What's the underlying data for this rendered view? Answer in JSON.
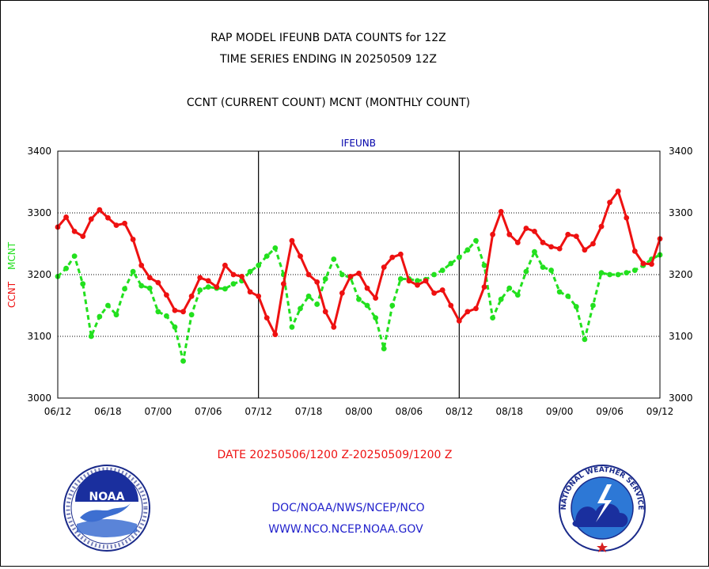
{
  "header": {
    "title_line1": "RAP MODEL IFEUNB DATA COUNTS for 12Z",
    "title_line2": "TIME SERIES ENDING IN 20250509 12Z",
    "subtitle": "CCNT (CURRENT COUNT) MCNT (MONTHLY COUNT)"
  },
  "footer": {
    "date_range": "DATE 20250506/1200 Z-20250509/1200 Z",
    "org_path": "DOC/NOAA/NWS/NCEP/NCO",
    "url": "WWW.NCO.NCEP.NOAA.GOV"
  },
  "logos": {
    "noaa_label": "NOAA",
    "nws_label": "NATIONAL WEATHER SERVICE"
  },
  "colors": {
    "ccnt": "#ee1111",
    "mcnt": "#22e01e",
    "frame": "#000000",
    "axis_title": "#0000aa",
    "footer_text": "#2222cc"
  },
  "chart_data": {
    "type": "line",
    "title": "IFEUNB",
    "ylabel_ccnt": "CCNT",
    "ylabel_mcnt": "MCNT",
    "ylim": [
      3000,
      3400
    ],
    "yticks": [
      "3000",
      "3100",
      "3200",
      "3300",
      "3400"
    ],
    "grid_y": [
      3100,
      3200,
      3300
    ],
    "xtick_labels": [
      "06/12",
      "06/18",
      "07/00",
      "07/06",
      "07/12",
      "07/18",
      "08/00",
      "08/06",
      "08/12",
      "08/18",
      "09/00",
      "09/06",
      "09/12"
    ],
    "day_dividers_at_tick": [
      4,
      8
    ],
    "series": [
      {
        "name": "CCNT",
        "style": "solid",
        "values": [
          3277,
          3293,
          3270,
          3262,
          3290,
          3305,
          3292,
          3280,
          3283,
          3257,
          3215,
          3195,
          3187,
          3167,
          3142,
          3140,
          3165,
          3195,
          3190,
          3180,
          3215,
          3200,
          3197,
          3172,
          3165,
          3130,
          3103,
          3185,
          3255,
          3230,
          3200,
          3188,
          3140,
          3115,
          3170,
          3197,
          3202,
          3178,
          3162,
          3212,
          3228,
          3233,
          3190,
          3183,
          3190,
          3170,
          3175,
          3150,
          3125,
          3140,
          3145,
          3180,
          3265,
          3302,
          3265,
          3252,
          3275,
          3270,
          3252,
          3245,
          3242,
          3265,
          3262,
          3240,
          3250,
          3278,
          3317,
          3335,
          3292,
          3238,
          3218,
          3217,
          3258
        ]
      },
      {
        "name": "MCNT",
        "style": "dashed",
        "values": [
          3197,
          3210,
          3230,
          3185,
          3100,
          3132,
          3150,
          3135,
          3177,
          3205,
          3182,
          3178,
          3140,
          3133,
          3115,
          3060,
          3135,
          3175,
          3180,
          3178,
          3177,
          3185,
          3190,
          3205,
          3215,
          3230,
          3243,
          3200,
          3115,
          3145,
          3165,
          3152,
          3193,
          3225,
          3200,
          3195,
          3160,
          3150,
          3130,
          3080,
          3150,
          3193,
          3193,
          3190,
          3192,
          3200,
          3207,
          3218,
          3228,
          3240,
          3255,
          3215,
          3130,
          3160,
          3178,
          3167,
          3205,
          3237,
          3212,
          3207,
          3172,
          3165,
          3148,
          3095,
          3150,
          3203,
          3200,
          3200,
          3203,
          3207,
          3215,
          3225,
          3232
        ]
      }
    ]
  }
}
